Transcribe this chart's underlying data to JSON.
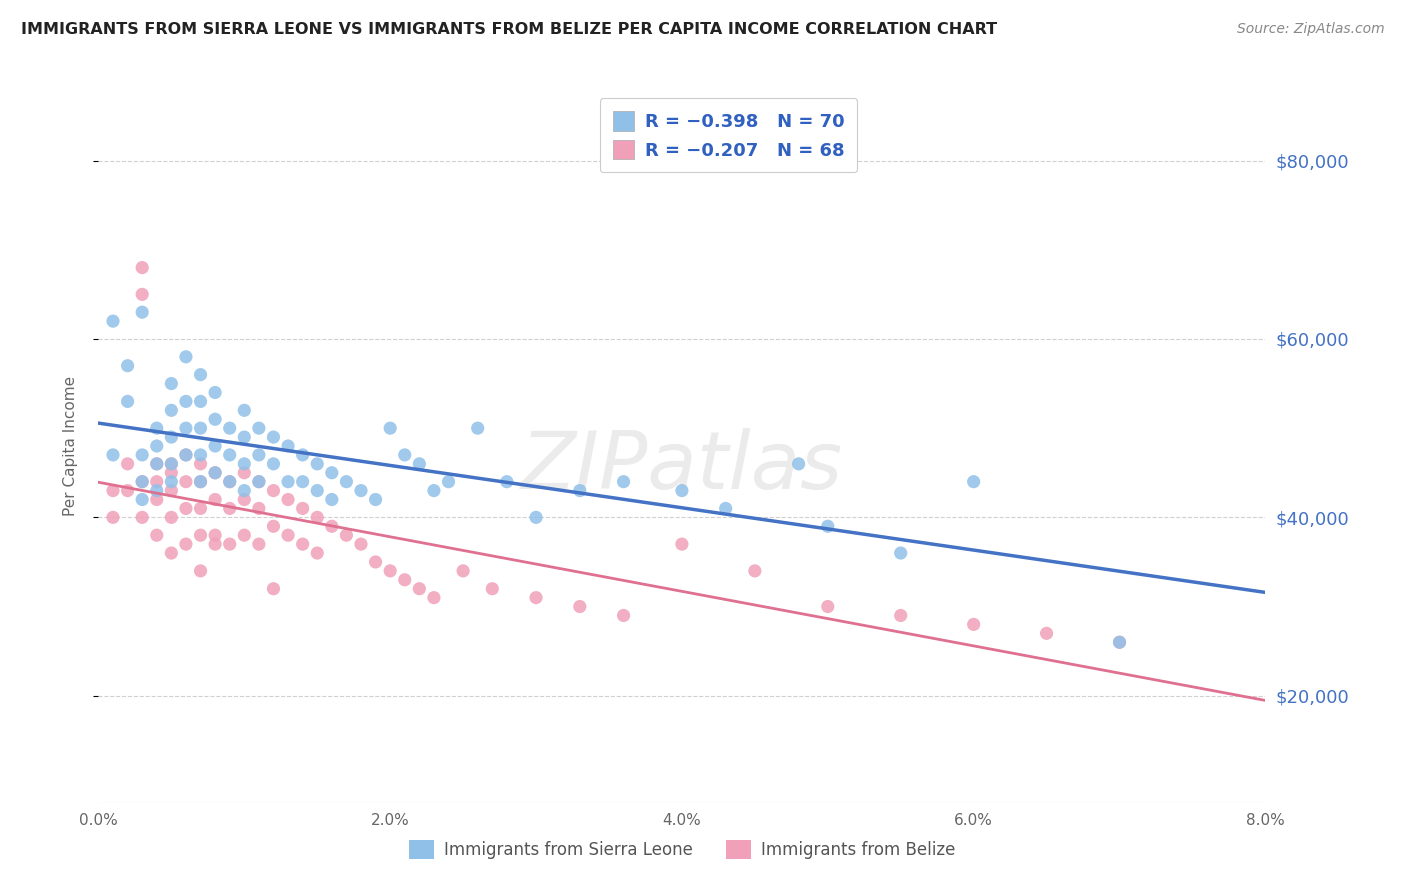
{
  "title": "IMMIGRANTS FROM SIERRA LEONE VS IMMIGRANTS FROM BELIZE PER CAPITA INCOME CORRELATION CHART",
  "source": "Source: ZipAtlas.com",
  "ylabel": "Per Capita Income",
  "xmin": 0.0,
  "xmax": 0.08,
  "ymin": 8000,
  "ymax": 88000,
  "yticks": [
    20000,
    40000,
    60000,
    80000
  ],
  "ytick_labels": [
    "$20,000",
    "$40,000",
    "$60,000",
    "$80,000"
  ],
  "color_sierra": "#90c0e8",
  "color_belize": "#f0a0b8",
  "line_color_sierra": "#4472c4",
  "line_color_belize": "#e07090",
  "label_sierra": "Immigrants from Sierra Leone",
  "label_belize": "Immigrants from Belize",
  "watermark": "ZIPatlas",
  "background_color": "#ffffff",
  "sierra_leone_x": [
    0.001,
    0.001,
    0.002,
    0.002,
    0.003,
    0.003,
    0.003,
    0.003,
    0.004,
    0.004,
    0.004,
    0.004,
    0.005,
    0.005,
    0.005,
    0.005,
    0.005,
    0.006,
    0.006,
    0.006,
    0.006,
    0.007,
    0.007,
    0.007,
    0.007,
    0.007,
    0.008,
    0.008,
    0.008,
    0.008,
    0.009,
    0.009,
    0.009,
    0.01,
    0.01,
    0.01,
    0.01,
    0.011,
    0.011,
    0.011,
    0.012,
    0.012,
    0.013,
    0.013,
    0.014,
    0.014,
    0.015,
    0.015,
    0.016,
    0.016,
    0.017,
    0.018,
    0.019,
    0.02,
    0.021,
    0.022,
    0.023,
    0.024,
    0.026,
    0.028,
    0.03,
    0.033,
    0.036,
    0.04,
    0.043,
    0.048,
    0.05,
    0.055,
    0.06,
    0.07
  ],
  "sierra_leone_y": [
    47000,
    62000,
    57000,
    53000,
    63000,
    47000,
    44000,
    42000,
    50000,
    48000,
    46000,
    43000,
    55000,
    52000,
    49000,
    46000,
    44000,
    58000,
    53000,
    50000,
    47000,
    56000,
    53000,
    50000,
    47000,
    44000,
    54000,
    51000,
    48000,
    45000,
    50000,
    47000,
    44000,
    52000,
    49000,
    46000,
    43000,
    50000,
    47000,
    44000,
    49000,
    46000,
    48000,
    44000,
    47000,
    44000,
    46000,
    43000,
    45000,
    42000,
    44000,
    43000,
    42000,
    50000,
    47000,
    46000,
    43000,
    44000,
    50000,
    44000,
    40000,
    43000,
    44000,
    43000,
    41000,
    46000,
    39000,
    36000,
    44000,
    26000
  ],
  "belize_x": [
    0.001,
    0.001,
    0.002,
    0.002,
    0.003,
    0.003,
    0.003,
    0.003,
    0.004,
    0.004,
    0.004,
    0.004,
    0.005,
    0.005,
    0.005,
    0.005,
    0.006,
    0.006,
    0.006,
    0.006,
    0.007,
    0.007,
    0.007,
    0.007,
    0.007,
    0.008,
    0.008,
    0.008,
    0.009,
    0.009,
    0.009,
    0.01,
    0.01,
    0.01,
    0.011,
    0.011,
    0.011,
    0.012,
    0.012,
    0.013,
    0.013,
    0.014,
    0.014,
    0.015,
    0.015,
    0.016,
    0.017,
    0.018,
    0.019,
    0.02,
    0.021,
    0.022,
    0.023,
    0.025,
    0.027,
    0.03,
    0.033,
    0.036,
    0.04,
    0.045,
    0.05,
    0.055,
    0.06,
    0.065,
    0.07,
    0.005,
    0.008,
    0.012
  ],
  "belize_y": [
    43000,
    40000,
    46000,
    43000,
    68000,
    65000,
    44000,
    40000,
    46000,
    44000,
    42000,
    38000,
    45000,
    43000,
    40000,
    36000,
    47000,
    44000,
    41000,
    37000,
    46000,
    44000,
    41000,
    38000,
    34000,
    45000,
    42000,
    38000,
    44000,
    41000,
    37000,
    45000,
    42000,
    38000,
    44000,
    41000,
    37000,
    43000,
    39000,
    42000,
    38000,
    41000,
    37000,
    40000,
    36000,
    39000,
    38000,
    37000,
    35000,
    34000,
    33000,
    32000,
    31000,
    34000,
    32000,
    31000,
    30000,
    29000,
    37000,
    34000,
    30000,
    29000,
    28000,
    27000,
    26000,
    46000,
    37000,
    32000
  ]
}
